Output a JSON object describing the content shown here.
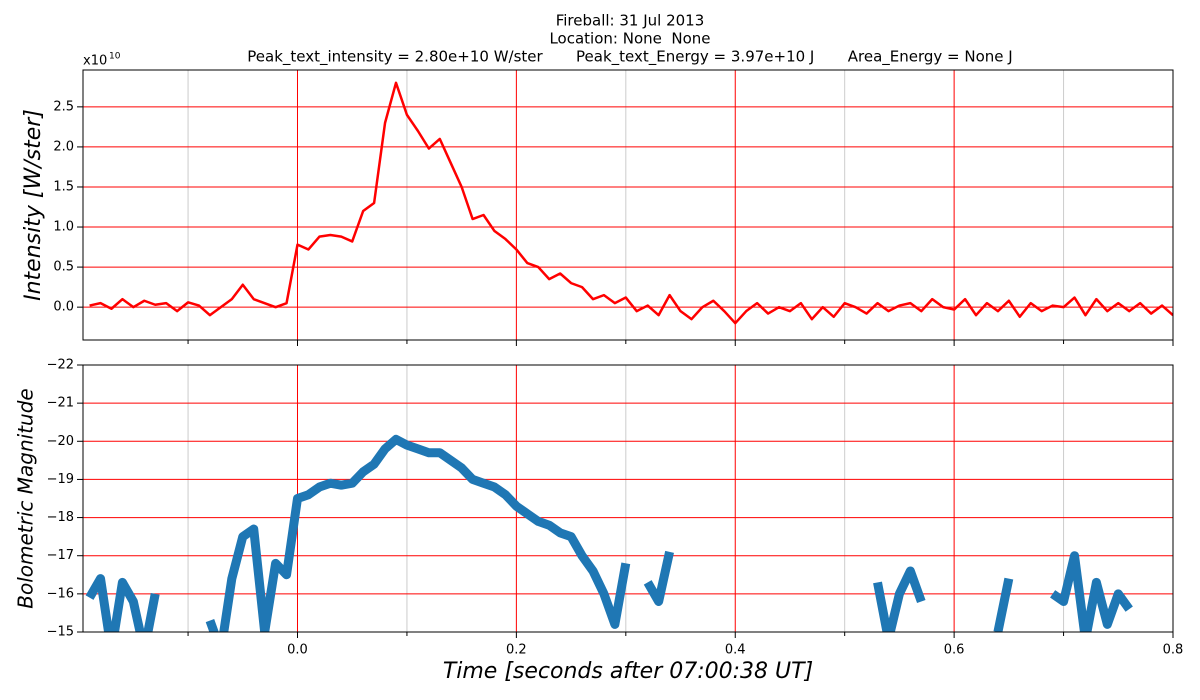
{
  "chart_data": [
    {
      "type": "line",
      "title": [
        "Fireball: 31 Jul 2013",
        "Location: None  None",
        "Peak_text_intensity = 2.80e+10 W/ster       Peak_text_Energy = 3.97e+10 J       Area_Energy = None J"
      ],
      "y_label": "Intensity [W/ster]",
      "y_offset": {
        "base": "x10",
        "exponent": "10"
      },
      "x": [
        -0.19,
        -0.18,
        -0.17,
        -0.16,
        -0.15,
        -0.14,
        -0.13,
        -0.12,
        -0.11,
        -0.1,
        -0.09,
        -0.08,
        -0.07,
        -0.06,
        -0.05,
        -0.04,
        -0.03,
        -0.02,
        -0.01,
        0,
        0.01,
        0.02,
        0.03,
        0.04,
        0.05,
        0.06,
        0.07,
        0.08,
        0.09,
        0.1,
        0.11,
        0.12,
        0.13,
        0.14,
        0.15,
        0.16,
        0.17,
        0.18,
        0.19,
        0.2,
        0.21,
        0.22,
        0.23,
        0.24,
        0.25,
        0.26,
        0.27,
        0.28,
        0.29,
        0.3,
        0.31,
        0.32,
        0.33,
        0.34,
        0.35,
        0.36,
        0.37,
        0.38,
        0.39,
        0.4,
        0.41,
        0.42,
        0.43,
        0.44,
        0.45,
        0.46,
        0.47,
        0.48,
        0.49,
        0.5,
        0.51,
        0.52,
        0.53,
        0.54,
        0.55,
        0.56,
        0.57,
        0.58,
        0.59,
        0.6,
        0.61,
        0.62,
        0.63,
        0.64,
        0.65,
        0.66,
        0.67,
        0.68,
        0.69,
        0.7,
        0.71,
        0.72,
        0.73,
        0.74,
        0.75,
        0.76,
        0.77,
        0.78,
        0.79,
        0.8
      ],
      "values": [
        0.02,
        0.05,
        -0.02,
        0.1,
        0,
        0.08,
        0.03,
        0.05,
        -0.05,
        0.06,
        0.02,
        -0.1,
        0,
        0.1,
        0.28,
        0.1,
        0.05,
        0,
        0.05,
        0.78,
        0.72,
        0.88,
        0.9,
        0.88,
        0.82,
        1.2,
        1.3,
        2.3,
        2.8,
        2.4,
        2.2,
        1.98,
        2.1,
        1.8,
        1.5,
        1.1,
        1.15,
        0.95,
        0.85,
        0.72,
        0.55,
        0.5,
        0.35,
        0.42,
        0.3,
        0.25,
        0.1,
        0.15,
        0.05,
        0.12,
        -0.05,
        0.02,
        -0.1,
        0.15,
        -0.05,
        -0.15,
        0,
        0.08,
        -0.05,
        -0.2,
        -0.05,
        0.05,
        -0.08,
        0,
        -0.05,
        0.05,
        -0.15,
        0,
        -0.12,
        0.05,
        0,
        -0.08,
        0.05,
        -0.05,
        0.02,
        0.05,
        -0.05,
        0.1,
        0,
        -0.03,
        0.1,
        -0.1,
        0.05,
        -0.05,
        0.08,
        -0.12,
        0.05,
        -0.05,
        0.02,
        0,
        0.12,
        -0.1,
        0.1,
        -0.05,
        0.05,
        -0.05,
        0.05,
        -0.08,
        0.02,
        -0.1
      ],
      "color": "#ff0000",
      "line_width": 2.5,
      "xlim": [
        -0.196,
        0.8
      ],
      "ylim": [
        -0.41,
        2.96
      ],
      "xticks": [
        0,
        0.2,
        0.4,
        0.6,
        0.8
      ],
      "minor_xticks": [
        -0.1,
        0.1,
        0.3,
        0.5,
        0.7
      ],
      "yticks": [
        {
          "value": 0,
          "label": "0.0"
        },
        {
          "value": 0.5,
          "label": "0.5"
        },
        {
          "value": 1,
          "label": "1.0"
        },
        {
          "value": 1.5,
          "label": "1.5"
        },
        {
          "value": 2,
          "label": "2.0"
        },
        {
          "value": 2.5,
          "label": "2.5"
        }
      ],
      "grid": true,
      "grid_color": "#ff0000",
      "minor_grid_color": "#cccccc"
    },
    {
      "type": "line",
      "y_label": "Bolometric Magnitude",
      "x_label": "Time [seconds after 07:00:38 UT]",
      "x": [
        -0.19,
        -0.18,
        -0.17,
        -0.16,
        -0.15,
        -0.14,
        -0.13,
        -0.12,
        -0.11,
        -0.1,
        -0.09,
        -0.08,
        -0.07,
        -0.06,
        -0.05,
        -0.04,
        -0.03,
        -0.02,
        -0.01,
        0,
        0.01,
        0.02,
        0.03,
        0.04,
        0.05,
        0.06,
        0.07,
        0.08,
        0.09,
        0.1,
        0.11,
        0.12,
        0.13,
        0.14,
        0.15,
        0.16,
        0.17,
        0.18,
        0.19,
        0.2,
        0.21,
        0.22,
        0.23,
        0.24,
        0.25,
        0.26,
        0.27,
        0.28,
        0.29,
        0.3,
        0.31,
        0.32,
        0.33,
        0.34,
        0.35,
        0.36,
        0.37,
        0.38,
        0.39,
        0.4,
        0.41,
        0.42,
        0.43,
        0.44,
        0.45,
        0.46,
        0.47,
        0.48,
        0.49,
        0.5,
        0.51,
        0.52,
        0.53,
        0.54,
        0.55,
        0.56,
        0.57,
        0.58,
        0.59,
        0.6,
        0.61,
        0.62,
        0.63,
        0.64,
        0.65,
        0.66,
        0.67,
        0.68,
        0.69,
        0.7,
        0.71,
        0.72,
        0.73,
        0.74,
        0.75,
        0.76,
        0.77,
        0.78,
        0.79,
        0.8
      ],
      "values": [
        -15.9,
        -16.4,
        -14.5,
        -16.3,
        -15.8,
        -14.5,
        -16.0,
        null,
        -16.1,
        null,
        null,
        -15.3,
        -14.5,
        -16.4,
        -17.5,
        -17.7,
        -15.0,
        -16.8,
        -16.5,
        -18.5,
        -18.6,
        -18.8,
        -18.9,
        -18.85,
        -18.9,
        -19.2,
        -19.4,
        -19.8,
        -20.05,
        -19.9,
        -19.8,
        -19.7,
        -19.7,
        -19.5,
        -19.3,
        -19.0,
        -18.9,
        -18.8,
        -18.6,
        -18.3,
        -18.1,
        -17.9,
        -17.8,
        -17.6,
        -17.5,
        -17.0,
        -16.6,
        -16.0,
        -15.2,
        -16.8,
        null,
        -16.3,
        -15.8,
        -17.1,
        null,
        null,
        null,
        null,
        null,
        null,
        -15.3,
        null,
        null,
        -15.4,
        null,
        null,
        null,
        null,
        null,
        null,
        -16.0,
        null,
        -16.3,
        -14.8,
        -16.0,
        -16.6,
        -15.8,
        null,
        -15.2,
        null,
        null,
        -16.5,
        null,
        -15.0,
        -16.4,
        null,
        -15.4,
        null,
        -16.0,
        -15.8,
        -17.0,
        -14.8,
        -16.3,
        -15.2,
        -16.0,
        -15.6,
        null,
        null,
        null,
        null
      ],
      "color": "#1f77b4",
      "line_width": 9,
      "xlim": [
        -0.196,
        0.8
      ],
      "ylim": [
        -15,
        -22
      ],
      "xticks": [
        {
          "value": 0,
          "label": "0.0"
        },
        {
          "value": 0.2,
          "label": "0.2"
        },
        {
          "value": 0.4,
          "label": "0.4"
        },
        {
          "value": 0.6,
          "label": "0.6"
        },
        {
          "value": 0.8,
          "label": "0.8"
        }
      ],
      "minor_xticks": [
        -0.1,
        0.1,
        0.3,
        0.5,
        0.7
      ],
      "yticks": [
        {
          "value": -22,
          "label": "−22"
        },
        {
          "value": -21,
          "label": "−21"
        },
        {
          "value": -20,
          "label": "−20"
        },
        {
          "value": -19,
          "label": "−19"
        },
        {
          "value": -18,
          "label": "−18"
        },
        {
          "value": -17,
          "label": "−17"
        },
        {
          "value": -16,
          "label": "−16"
        },
        {
          "value": -15,
          "label": "−15"
        }
      ],
      "grid": true,
      "grid_color": "#ff0000",
      "minor_grid_color": "#cccccc"
    }
  ]
}
